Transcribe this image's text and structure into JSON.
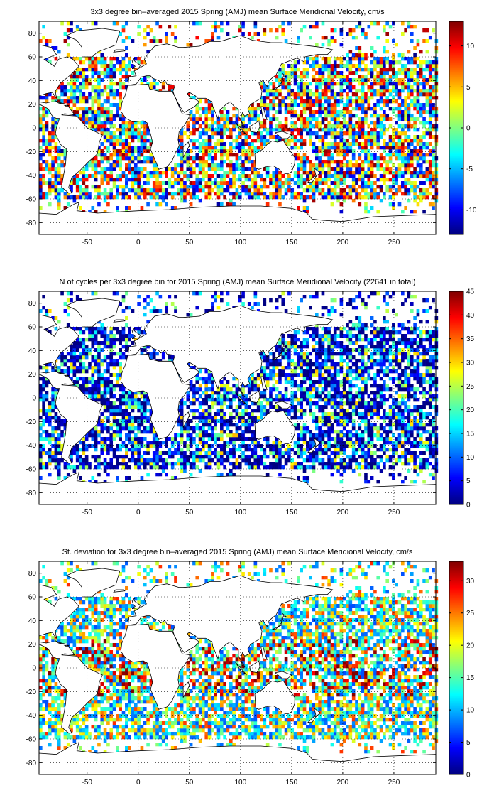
{
  "chart_data": [
    {
      "type": "heatmap",
      "title": "3x3 degree bin–averaged 2015 Spring (AMJ) mean Surface Meridional Velocity, cm/s",
      "xlim": [
        -97,
        291
      ],
      "ylim": [
        -90,
        90
      ],
      "x_ticks": [
        "-50",
        "0",
        "50",
        "100",
        "150",
        "200",
        "250"
      ],
      "y_ticks": [
        "80",
        "60",
        "40",
        "20",
        "0",
        "-20",
        "-40",
        "-60",
        "-80"
      ],
      "grid": "dotted",
      "colorbar": {
        "range": [
          -13,
          13
        ],
        "ticks": [
          "10",
          "5",
          "0",
          "-5",
          "-10"
        ],
        "colormap": "jet"
      },
      "bin_size_deg": 3,
      "value_style": "signed"
    },
    {
      "type": "heatmap",
      "title": "N of cycles per 3x3 degree bin for 2015 Spring (AMJ) mean Surface Meridional Velocity (22641 in total)",
      "xlim": [
        -97,
        291
      ],
      "ylim": [
        -90,
        90
      ],
      "x_ticks": [
        "-50",
        "0",
        "50",
        "100",
        "150",
        "200",
        "250"
      ],
      "y_ticks": [
        "80",
        "60",
        "40",
        "20",
        "0",
        "-20",
        "-40",
        "-60",
        "-80"
      ],
      "grid": "dotted",
      "colorbar": {
        "range": [
          0,
          45
        ],
        "ticks": [
          "45",
          "40",
          "35",
          "30",
          "25",
          "20",
          "15",
          "10",
          "5",
          "0"
        ],
        "colormap": "jet"
      },
      "bin_size_deg": 3,
      "value_style": "count"
    },
    {
      "type": "heatmap",
      "title": "St. deviation for 3x3 degree bin–averaged 2015 Spring (AMJ) mean Surface Meridional Velocity, cm/s",
      "xlim": [
        -97,
        291
      ],
      "ylim": [
        -90,
        90
      ],
      "x_ticks": [
        "-50",
        "0",
        "50",
        "100",
        "150",
        "200",
        "250"
      ],
      "y_ticks": [
        "80",
        "60",
        "40",
        "20",
        "0",
        "-20",
        "-40",
        "-60",
        "-80"
      ],
      "grid": "dotted",
      "colorbar": {
        "range": [
          0,
          33
        ],
        "ticks": [
          "30",
          "25",
          "20",
          "15",
          "10",
          "5",
          "0"
        ],
        "colormap": "jet"
      },
      "bin_size_deg": 3,
      "value_style": "stdev"
    }
  ]
}
